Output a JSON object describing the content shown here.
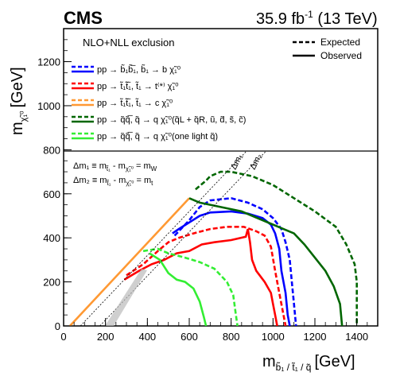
{
  "header": {
    "experiment": "CMS",
    "luminosity": "35.9 fb",
    "lumi_exp": "-1",
    "energy": " (13 TeV)"
  },
  "axes": {
    "x": {
      "label_main": "m",
      "label_sub": "b̃₁ / t̃₁ / q̃",
      "label_unit": "[GeV]",
      "ticks": [
        0,
        200,
        400,
        600,
        800,
        1000,
        1200,
        1400
      ]
    },
    "y": {
      "label_main": "m",
      "label_sub": "χ̃₁⁰",
      "label_unit": "[GeV]",
      "ticks": [
        0,
        200,
        400,
        600,
        800,
        1000,
        1200
      ]
    }
  },
  "legend": {
    "title": "NLO+NLL exclusion",
    "expected": "Expected",
    "observed": "Observed",
    "entries": [
      {
        "label": "pp → b̃₁b̃̅₁, b̃₁ → b χ̃₁⁰",
        "color": "#0000ff"
      },
      {
        "label": "pp → t̃₁t̃̅₁, t̃₁ → t⁽*⁾ χ̃₁⁰",
        "color": "#ff0000"
      },
      {
        "label": "pp → t̃₁t̃̅₁, t̃₁ → c χ̃₁⁰",
        "color": "#ff9933"
      },
      {
        "label": "pp → q̃q̃̅, q̃ → q χ̃₁⁰(q̃L + q̃R, ũ, d̃, s̃, c̃)",
        "color": "#006600"
      },
      {
        "label": "pp → q̃q̃̅, q̃ → q χ̃₁⁰(one light q̃)",
        "color": "#33ee33"
      }
    ]
  },
  "annotations": {
    "dm1": "Δm₁ ≡ m",
    "dm1_sub1": "t̃₁",
    "dm1_mid": " - m",
    "dm1_sub2": "χ̃₁⁰",
    "dm1_end": " = m",
    "dm1_sub3": "W",
    "dm2": "Δm₂ ≡ m",
    "dm2_sub1": "t̃₁",
    "dm2_mid": " - m",
    "dm2_sub2": "χ̃₁⁰",
    "dm2_end": " = m",
    "dm2_sub3": "t",
    "line1": "Δm₁",
    "line2": "Δm₂"
  },
  "chart_data": {
    "type": "line",
    "xlim": [
      0,
      1500
    ],
    "ylim": [
      0,
      1350
    ],
    "series": [
      {
        "key": "sbottom_exp",
        "color": "#0000ff",
        "dash": true,
        "points": [
          [
            530,
            410
          ],
          [
            560,
            440
          ],
          [
            600,
            480
          ],
          [
            650,
            540
          ],
          [
            700,
            570
          ],
          [
            800,
            580
          ],
          [
            880,
            560
          ],
          [
            950,
            530
          ],
          [
            1000,
            490
          ],
          [
            1040,
            440
          ],
          [
            1060,
            380
          ],
          [
            1080,
            300
          ],
          [
            1090,
            200
          ],
          [
            1100,
            100
          ],
          [
            1110,
            0
          ]
        ]
      },
      {
        "key": "sbottom_obs",
        "color": "#0000ff",
        "dash": false,
        "points": [
          [
            520,
            420
          ],
          [
            550,
            440
          ],
          [
            600,
            470
          ],
          [
            650,
            500
          ],
          [
            700,
            515
          ],
          [
            800,
            520
          ],
          [
            880,
            510
          ],
          [
            950,
            490
          ],
          [
            990,
            460
          ],
          [
            1010,
            420
          ],
          [
            1030,
            350
          ],
          [
            1040,
            250
          ],
          [
            1060,
            150
          ],
          [
            1070,
            50
          ],
          [
            1080,
            0
          ]
        ]
      },
      {
        "key": "stop_t_exp",
        "color": "#ff0000",
        "dash": true,
        "points": [
          [
            300,
            230
          ],
          [
            380,
            280
          ],
          [
            450,
            340
          ],
          [
            500,
            380
          ],
          [
            550,
            400
          ],
          [
            620,
            420
          ],
          [
            700,
            440
          ],
          [
            780,
            450
          ],
          [
            860,
            450
          ],
          [
            920,
            430
          ],
          [
            960,
            410
          ],
          [
            990,
            360
          ],
          [
            1010,
            250
          ],
          [
            1030,
            150
          ],
          [
            1050,
            50
          ],
          [
            1060,
            0
          ]
        ]
      },
      {
        "key": "stop_t_obs",
        "color": "#ff0000",
        "dash": false,
        "points": [
          [
            290,
            210
          ],
          [
            360,
            250
          ],
          [
            420,
            280
          ],
          [
            480,
            300
          ],
          [
            540,
            330
          ],
          [
            600,
            340
          ],
          [
            660,
            370
          ],
          [
            720,
            380
          ],
          [
            800,
            390
          ],
          [
            870,
            405
          ],
          [
            880,
            440
          ],
          [
            890,
            380
          ],
          [
            900,
            300
          ],
          [
            920,
            250
          ],
          [
            960,
            200
          ],
          [
            990,
            150
          ],
          [
            1000,
            100
          ],
          [
            1010,
            50
          ],
          [
            1020,
            0
          ]
        ]
      },
      {
        "key": "stop_c_obs",
        "color": "#ff9933",
        "dash": false,
        "points": [
          [
            30,
            0
          ],
          [
            600,
            580
          ]
        ]
      },
      {
        "key": "squark8_exp",
        "color": "#006600",
        "dash": true,
        "points": [
          [
            630,
            620
          ],
          [
            680,
            660
          ],
          [
            700,
            680
          ],
          [
            750,
            700
          ],
          [
            800,
            700
          ],
          [
            900,
            680
          ],
          [
            1000,
            640
          ],
          [
            1100,
            580
          ],
          [
            1200,
            520
          ],
          [
            1300,
            450
          ],
          [
            1350,
            370
          ],
          [
            1390,
            280
          ],
          [
            1400,
            200
          ],
          [
            1400,
            100
          ],
          [
            1400,
            0
          ]
        ]
      },
      {
        "key": "squark8_obs",
        "color": "#006600",
        "dash": false,
        "points": [
          [
            600,
            580
          ],
          [
            650,
            560
          ],
          [
            700,
            550
          ],
          [
            750,
            540
          ],
          [
            850,
            520
          ],
          [
            950,
            480
          ],
          [
            1050,
            440
          ],
          [
            1100,
            420
          ],
          [
            1150,
            370
          ],
          [
            1200,
            310
          ],
          [
            1250,
            250
          ],
          [
            1290,
            180
          ],
          [
            1320,
            100
          ],
          [
            1330,
            0
          ]
        ]
      },
      {
        "key": "squark1_exp",
        "color": "#33ee33",
        "dash": true,
        "points": [
          [
            380,
            340
          ],
          [
            450,
            350
          ],
          [
            500,
            330
          ],
          [
            580,
            310
          ],
          [
            650,
            290
          ],
          [
            720,
            260
          ],
          [
            780,
            200
          ],
          [
            810,
            140
          ],
          [
            820,
            70
          ],
          [
            830,
            0
          ]
        ]
      },
      {
        "key": "squark1_obs",
        "color": "#33ee33",
        "dash": false,
        "points": [
          [
            410,
            330
          ],
          [
            460,
            300
          ],
          [
            500,
            240
          ],
          [
            540,
            210
          ],
          [
            580,
            200
          ],
          [
            620,
            170
          ],
          [
            650,
            110
          ],
          [
            670,
            40
          ],
          [
            680,
            0
          ]
        ]
      },
      {
        "key": "dm1_line",
        "color": "#000000",
        "dash": "dot",
        "points": [
          [
            80,
            0
          ],
          [
            940,
            860
          ]
        ]
      },
      {
        "key": "dm2_line",
        "color": "#000000",
        "dash": "dot",
        "points": [
          [
            173,
            0
          ],
          [
            1033,
            860
          ]
        ]
      }
    ]
  }
}
